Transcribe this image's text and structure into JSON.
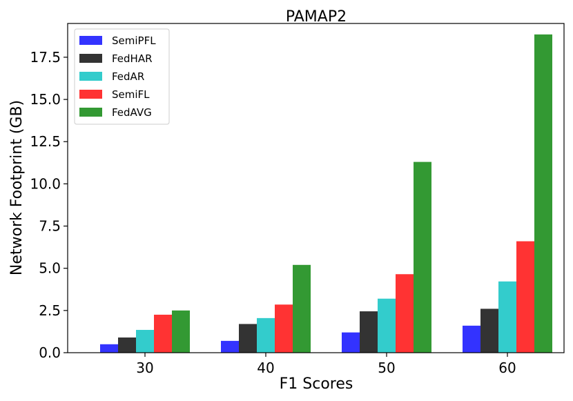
{
  "chart_data": {
    "type": "bar",
    "title": "PAMAP2",
    "xlabel": "F1 Scores",
    "ylabel": "Network Footprint (GB)",
    "categories": [
      "30",
      "40",
      "50",
      "60"
    ],
    "ylim": [
      0,
      19.5
    ],
    "yticks": [
      0.0,
      2.5,
      5.0,
      7.5,
      10.0,
      12.5,
      15.0,
      17.5
    ],
    "ytick_labels": [
      "0.0",
      "2.5",
      "5.0",
      "7.5",
      "10.0",
      "12.5",
      "15.0",
      "17.5"
    ],
    "legend_position": "top-left",
    "grid": false,
    "series": [
      {
        "name": "SemiPFL",
        "color": "#3333ff",
        "values": [
          0.5,
          0.7,
          1.2,
          1.6
        ]
      },
      {
        "name": "FedHAR",
        "color": "#333333",
        "values": [
          0.9,
          1.7,
          2.45,
          2.6
        ]
      },
      {
        "name": "FedAR",
        "color": "#33cccc",
        "values": [
          1.35,
          2.05,
          3.2,
          4.22
        ]
      },
      {
        "name": "SemiFL",
        "color": "#ff3333",
        "values": [
          2.25,
          2.85,
          4.65,
          6.6
        ]
      },
      {
        "name": "FedAVG",
        "color": "#339933",
        "values": [
          2.5,
          5.2,
          11.3,
          18.85
        ]
      }
    ]
  }
}
